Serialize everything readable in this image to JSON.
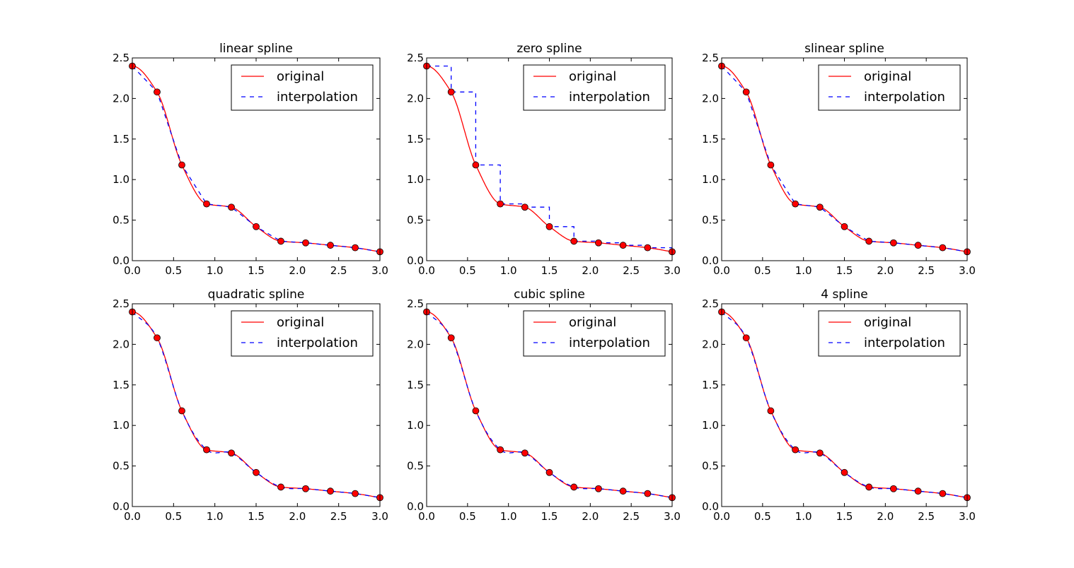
{
  "chart_data": [
    {
      "type": "line",
      "title": "linear spline",
      "xlim": [
        0,
        3
      ],
      "ylim": [
        0,
        2.5
      ],
      "xticks": [
        "0.0",
        "0.5",
        "1.0",
        "1.5",
        "2.0",
        "2.5",
        "3.0"
      ],
      "yticks": [
        "0.0",
        "0.5",
        "1.0",
        "1.5",
        "2.0",
        "2.5"
      ],
      "legend_position": "top-right",
      "series": [
        {
          "name": "original",
          "color": "#ff0000",
          "style": "solid"
        },
        {
          "name": "interpolation",
          "color": "#0000ff",
          "style": "dashed",
          "kind": "linear"
        }
      ],
      "points": {
        "x": [
          0.0,
          0.3,
          0.6,
          0.9,
          1.2,
          1.5,
          1.8,
          2.1,
          2.4,
          2.7,
          3.0
        ],
        "y": [
          2.4,
          2.08,
          1.18,
          0.7,
          0.66,
          0.42,
          0.24,
          0.22,
          0.19,
          0.16,
          0.11
        ],
        "color": "#ff0000"
      }
    },
    {
      "type": "line",
      "title": "zero spline",
      "xlim": [
        0,
        3
      ],
      "ylim": [
        0,
        2.5
      ],
      "xticks": [
        "0.0",
        "0.5",
        "1.0",
        "1.5",
        "2.0",
        "2.5",
        "3.0"
      ],
      "yticks": [
        "0.0",
        "0.5",
        "1.0",
        "1.5",
        "2.0",
        "2.5"
      ],
      "legend_position": "top-right",
      "series": [
        {
          "name": "original",
          "color": "#ff0000",
          "style": "solid"
        },
        {
          "name": "interpolation",
          "color": "#0000ff",
          "style": "dashed",
          "kind": "zero"
        }
      ],
      "points": {
        "x": [
          0.0,
          0.3,
          0.6,
          0.9,
          1.2,
          1.5,
          1.8,
          2.1,
          2.4,
          2.7,
          3.0
        ],
        "y": [
          2.4,
          2.08,
          1.18,
          0.7,
          0.66,
          0.42,
          0.24,
          0.22,
          0.19,
          0.16,
          0.11
        ],
        "color": "#ff0000"
      }
    },
    {
      "type": "line",
      "title": "slinear spline",
      "xlim": [
        0,
        3
      ],
      "ylim": [
        0,
        2.5
      ],
      "xticks": [
        "0.0",
        "0.5",
        "1.0",
        "1.5",
        "2.0",
        "2.5",
        "3.0"
      ],
      "yticks": [
        "0.0",
        "0.5",
        "1.0",
        "1.5",
        "2.0",
        "2.5"
      ],
      "legend_position": "top-right",
      "series": [
        {
          "name": "original",
          "color": "#ff0000",
          "style": "solid"
        },
        {
          "name": "interpolation",
          "color": "#0000ff",
          "style": "dashed",
          "kind": "linear"
        }
      ],
      "points": {
        "x": [
          0.0,
          0.3,
          0.6,
          0.9,
          1.2,
          1.5,
          1.8,
          2.1,
          2.4,
          2.7,
          3.0
        ],
        "y": [
          2.4,
          2.08,
          1.18,
          0.7,
          0.66,
          0.42,
          0.24,
          0.22,
          0.19,
          0.16,
          0.11
        ],
        "color": "#ff0000"
      }
    },
    {
      "type": "line",
      "title": "quadratic spline",
      "xlim": [
        0,
        3
      ],
      "ylim": [
        0,
        2.5
      ],
      "xticks": [
        "0.0",
        "0.5",
        "1.0",
        "1.5",
        "2.0",
        "2.5",
        "3.0"
      ],
      "yticks": [
        "0.0",
        "0.5",
        "1.0",
        "1.5",
        "2.0",
        "2.5"
      ],
      "legend_position": "top-right",
      "series": [
        {
          "name": "original",
          "color": "#ff0000",
          "style": "solid"
        },
        {
          "name": "interpolation",
          "color": "#0000ff",
          "style": "dashed",
          "kind": "smooth"
        }
      ],
      "points": {
        "x": [
          0.0,
          0.3,
          0.6,
          0.9,
          1.2,
          1.5,
          1.8,
          2.1,
          2.4,
          2.7,
          3.0
        ],
        "y": [
          2.4,
          2.08,
          1.18,
          0.7,
          0.66,
          0.42,
          0.24,
          0.22,
          0.19,
          0.16,
          0.11
        ],
        "color": "#ff0000"
      }
    },
    {
      "type": "line",
      "title": "cubic spline",
      "xlim": [
        0,
        3
      ],
      "ylim": [
        0,
        2.5
      ],
      "xticks": [
        "0.0",
        "0.5",
        "1.0",
        "1.5",
        "2.0",
        "2.5",
        "3.0"
      ],
      "yticks": [
        "0.0",
        "0.5",
        "1.0",
        "1.5",
        "2.0",
        "2.5"
      ],
      "legend_position": "top-right",
      "series": [
        {
          "name": "original",
          "color": "#ff0000",
          "style": "solid"
        },
        {
          "name": "interpolation",
          "color": "#0000ff",
          "style": "dashed",
          "kind": "smooth"
        }
      ],
      "points": {
        "x": [
          0.0,
          0.3,
          0.6,
          0.9,
          1.2,
          1.5,
          1.8,
          2.1,
          2.4,
          2.7,
          3.0
        ],
        "y": [
          2.4,
          2.08,
          1.18,
          0.7,
          0.66,
          0.42,
          0.24,
          0.22,
          0.19,
          0.16,
          0.11
        ],
        "color": "#ff0000"
      }
    },
    {
      "type": "line",
      "title": "4 spline",
      "xlim": [
        0,
        3
      ],
      "ylim": [
        0,
        2.5
      ],
      "xticks": [
        "0.0",
        "0.5",
        "1.0",
        "1.5",
        "2.0",
        "2.5",
        "3.0"
      ],
      "yticks": [
        "0.0",
        "0.5",
        "1.0",
        "1.5",
        "2.0",
        "2.5"
      ],
      "legend_position": "top-right",
      "series": [
        {
          "name": "original",
          "color": "#ff0000",
          "style": "solid"
        },
        {
          "name": "interpolation",
          "color": "#0000ff",
          "style": "dashed",
          "kind": "smooth"
        }
      ],
      "points": {
        "x": [
          0.0,
          0.3,
          0.6,
          0.9,
          1.2,
          1.5,
          1.8,
          2.1,
          2.4,
          2.7,
          3.0
        ],
        "y": [
          2.4,
          2.08,
          1.18,
          0.7,
          0.66,
          0.42,
          0.24,
          0.22,
          0.19,
          0.16,
          0.11
        ],
        "color": "#ff0000"
      }
    }
  ]
}
